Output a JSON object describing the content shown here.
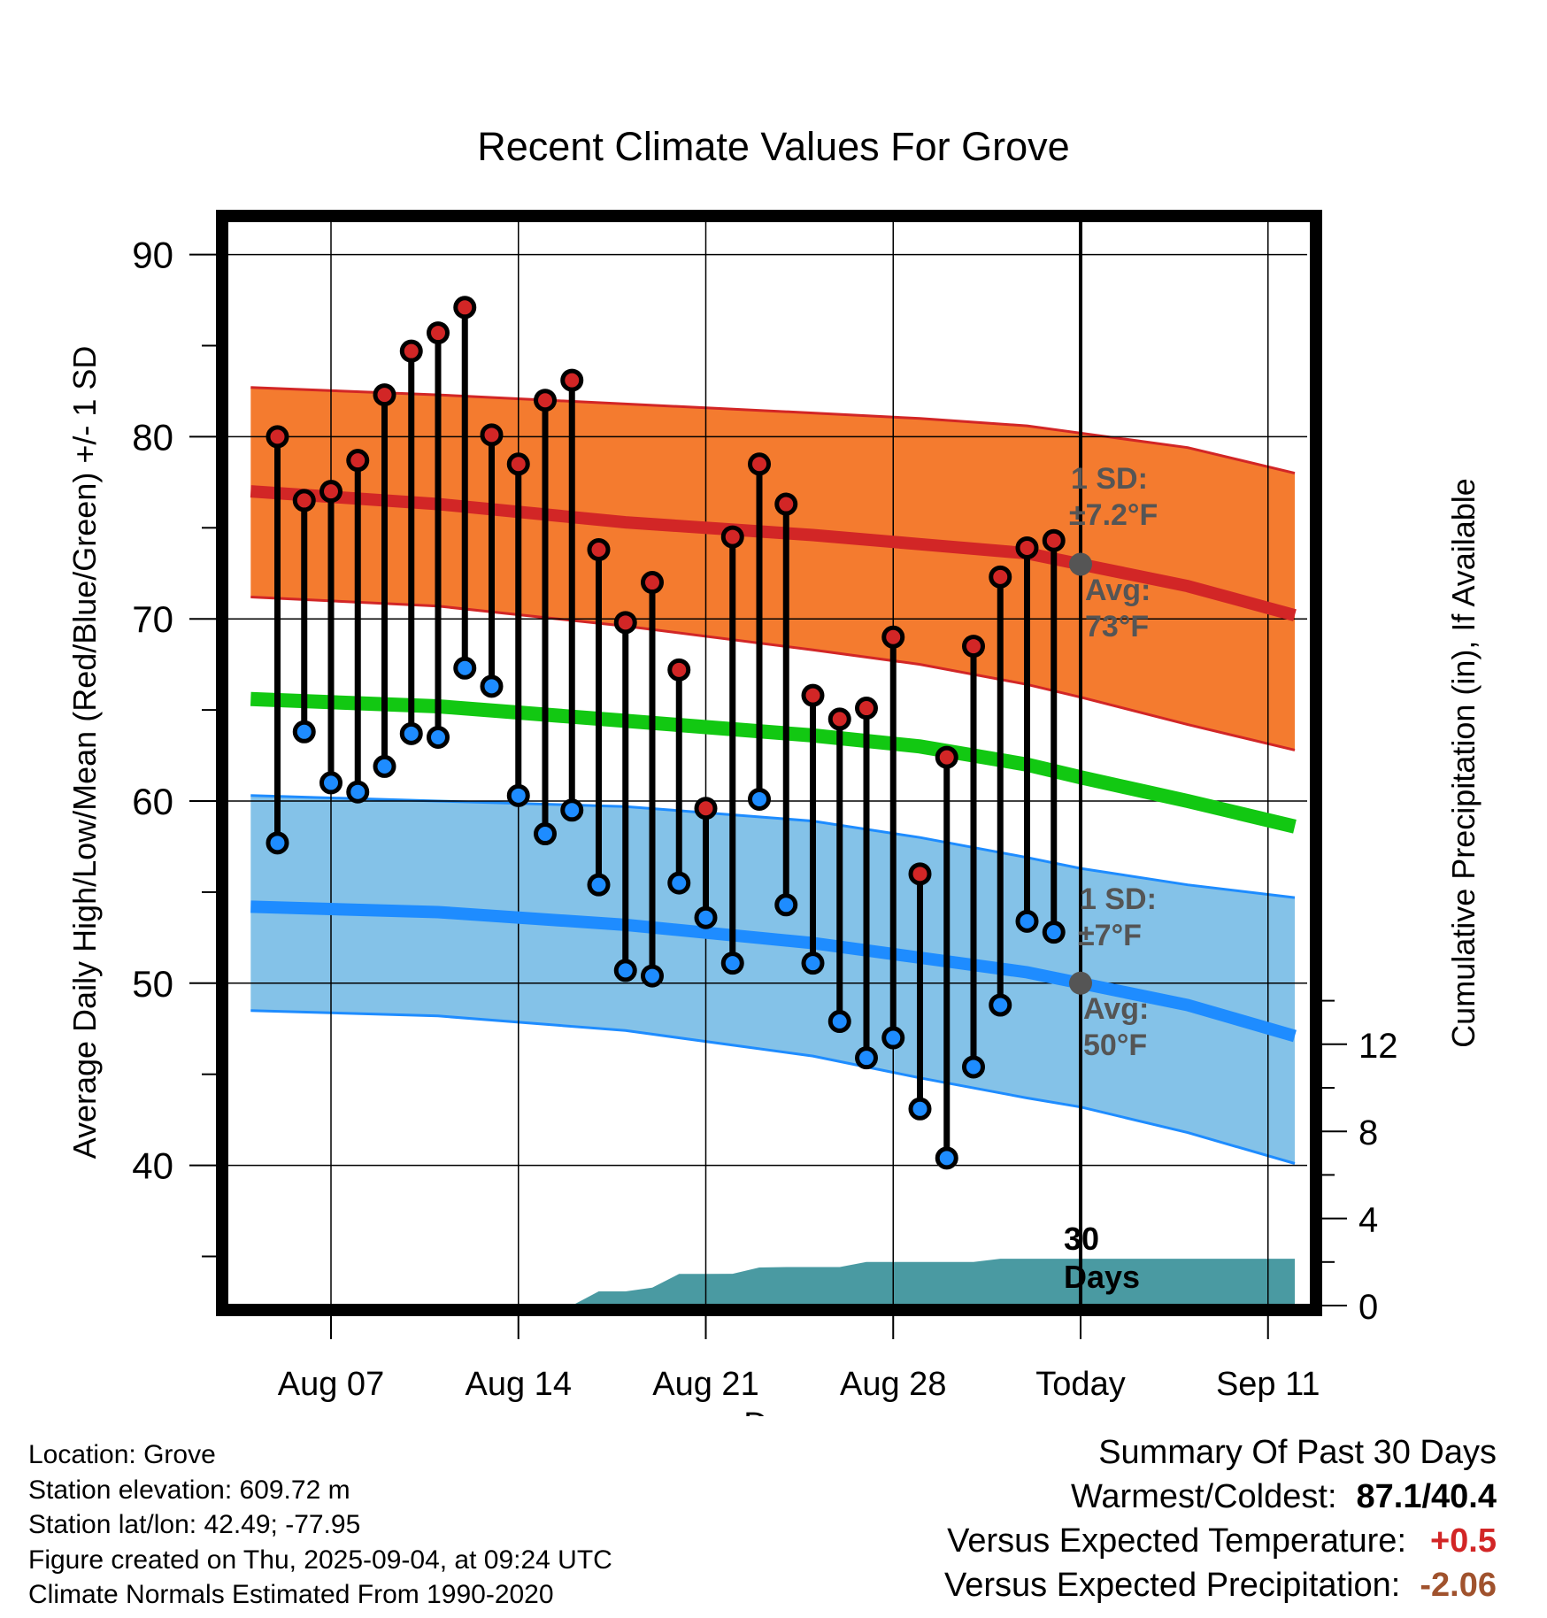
{
  "chart_data": {
    "type": "line",
    "title": "Recent Climate Values For Grove",
    "xlabel": "Day",
    "ylabel": "Average Daily High/Low/Mean (Red/Blue/Green) +/- 1 SD",
    "y2label": "Cumulative Precipitation (in), If Available",
    "ylim": [
      33,
      93
    ],
    "y2lim": [
      0,
      24
    ],
    "yticks": [
      40,
      50,
      60,
      70,
      80,
      90
    ],
    "y2ticks": [
      0,
      4,
      8,
      12
    ],
    "xlim": [
      -3.6,
      14.1
    ],
    "xticks": [
      {
        "day": -27,
        "label": "Aug 07"
      },
      {
        "day": -20,
        "label": "Aug 14"
      },
      {
        "day": -13,
        "label": "Aug 21"
      },
      {
        "day": -6,
        "label": "Aug 28"
      },
      {
        "day": 1,
        "label": "Today"
      },
      {
        "day": 8,
        "label": "Sep 11"
      }
    ],
    "grid": true,
    "observed": [
      {
        "day": -29,
        "high": 80.0,
        "low": 57.7
      },
      {
        "day": -28,
        "high": 76.5,
        "low": 63.8
      },
      {
        "day": -27,
        "high": 77.0,
        "low": 61.0
      },
      {
        "day": -26,
        "high": 78.7,
        "low": 60.5
      },
      {
        "day": -25,
        "high": 82.3,
        "low": 61.9
      },
      {
        "day": -24,
        "high": 84.7,
        "low": 63.7
      },
      {
        "day": -23,
        "high": 85.7,
        "low": 63.5
      },
      {
        "day": -22,
        "high": 87.1,
        "low": 67.3
      },
      {
        "day": -21,
        "high": 80.1,
        "low": 66.3
      },
      {
        "day": -20,
        "high": 78.5,
        "low": 60.3
      },
      {
        "day": -19,
        "high": 82.0,
        "low": 58.2
      },
      {
        "day": -18,
        "high": 83.1,
        "low": 59.5
      },
      {
        "day": -17,
        "high": 73.8,
        "low": 55.4
      },
      {
        "day": -16,
        "high": 69.8,
        "low": 50.7
      },
      {
        "day": -15,
        "high": 72.0,
        "low": 50.4
      },
      {
        "day": -14,
        "high": 67.2,
        "low": 55.5
      },
      {
        "day": -13,
        "high": 59.6,
        "low": 53.6
      },
      {
        "day": -12,
        "high": 74.5,
        "low": 51.1
      },
      {
        "day": -11,
        "high": 78.5,
        "low": 60.1
      },
      {
        "day": -10,
        "high": 76.3,
        "low": 54.3
      },
      {
        "day": -9,
        "high": 65.8,
        "low": 51.1
      },
      {
        "day": -8,
        "high": 64.5,
        "low": 47.9
      },
      {
        "day": -7,
        "high": 65.1,
        "low": 45.9
      },
      {
        "day": -6,
        "high": 69.0,
        "low": 47.0
      },
      {
        "day": -5,
        "high": 56.0,
        "low": 43.1
      },
      {
        "day": -4,
        "high": 62.4,
        "low": 40.4
      },
      {
        "day": -3,
        "high": 68.5,
        "low": 45.4
      },
      {
        "day": -2,
        "high": 72.3,
        "low": 48.8
      },
      {
        "day": -1,
        "high": 73.9,
        "low": 53.4
      },
      {
        "day": 0,
        "high": 74.3,
        "low": 52.8
      }
    ],
    "normals": {
      "high": [
        [
          -30.0,
          77.0
        ],
        [
          -23.0,
          76.3
        ],
        [
          -16.0,
          75.3
        ],
        [
          -9.0,
          74.6
        ],
        [
          -5.0,
          74.1
        ],
        [
          -1.0,
          73.6
        ],
        [
          1.0,
          73.0
        ],
        [
          5.0,
          71.8
        ],
        [
          9.0,
          70.2
        ]
      ],
      "high_sd_upper": [
        [
          -30.0,
          82.7
        ],
        [
          -23.0,
          82.3
        ],
        [
          -16.0,
          81.8
        ],
        [
          -9.0,
          81.3
        ],
        [
          -5.0,
          81.0
        ],
        [
          -1.0,
          80.6
        ],
        [
          1.0,
          80.2
        ],
        [
          5.0,
          79.4
        ],
        [
          9.0,
          78.0
        ]
      ],
      "high_sd_lower": [
        [
          -30.0,
          71.2
        ],
        [
          -23.0,
          70.7
        ],
        [
          -16.0,
          69.6
        ],
        [
          -9.0,
          68.3
        ],
        [
          -5.0,
          67.5
        ],
        [
          -1.0,
          66.4
        ],
        [
          1.0,
          65.7
        ],
        [
          5.0,
          64.2
        ],
        [
          9.0,
          62.8
        ]
      ],
      "mean": [
        [
          -30.0,
          65.6
        ],
        [
          -23.0,
          65.2
        ],
        [
          -16.0,
          64.4
        ],
        [
          -9.0,
          63.6
        ],
        [
          -5.0,
          63.0
        ],
        [
          -1.0,
          62.0
        ],
        [
          1.0,
          61.3
        ],
        [
          5.0,
          60.0
        ],
        [
          9.0,
          58.6
        ]
      ],
      "low": [
        [
          -30.0,
          54.2
        ],
        [
          -23.0,
          53.9
        ],
        [
          -16.0,
          53.2
        ],
        [
          -9.0,
          52.2
        ],
        [
          -5.0,
          51.4
        ],
        [
          -1.0,
          50.6
        ],
        [
          1.0,
          50.0
        ],
        [
          5.0,
          48.8
        ],
        [
          9.0,
          47.1
        ]
      ],
      "low_sd_upper": [
        [
          -30.0,
          60.3
        ],
        [
          -23.0,
          60.0
        ],
        [
          -16.0,
          59.7
        ],
        [
          -9.0,
          58.9
        ],
        [
          -5.0,
          58.0
        ],
        [
          -1.0,
          56.9
        ],
        [
          1.0,
          56.3
        ],
        [
          5.0,
          55.4
        ],
        [
          9.0,
          54.7
        ]
      ],
      "low_sd_lower": [
        [
          -30.0,
          48.5
        ],
        [
          -23.0,
          48.2
        ],
        [
          -16.0,
          47.4
        ],
        [
          -9.0,
          46.0
        ],
        [
          -5.0,
          44.8
        ],
        [
          -1.0,
          43.7
        ],
        [
          1.0,
          43.2
        ],
        [
          5.0,
          41.8
        ],
        [
          9.0,
          40.1
        ]
      ]
    },
    "precip_cumulative": [
      [
        -30.0,
        0.0
      ],
      [
        -18.0,
        0.0
      ],
      [
        -17.0,
        0.65
      ],
      [
        -16.0,
        0.65
      ],
      [
        -15.0,
        0.82
      ],
      [
        -14.0,
        1.45
      ],
      [
        -13.0,
        1.45
      ],
      [
        -12.0,
        1.46
      ],
      [
        -11.0,
        1.75
      ],
      [
        -10.0,
        1.77
      ],
      [
        -9.0,
        1.77
      ],
      [
        -8.0,
        1.77
      ],
      [
        -7.0,
        2.0
      ],
      [
        -6.0,
        2.0
      ],
      [
        -5.0,
        2.0
      ],
      [
        -4.0,
        2.0
      ],
      [
        -3.0,
        2.0
      ],
      [
        -2.0,
        2.15
      ],
      [
        -1.0,
        2.15
      ],
      [
        9.0,
        2.15
      ]
    ],
    "annotations": {
      "high_sd_label": "1 SD:",
      "high_sd_value": "±7.2°F",
      "high_avg_label": "Avg:",
      "high_avg_value": "73°F",
      "low_sd_label": "1 SD:",
      "low_sd_value": "±7°F",
      "low_avg_label": "Avg:",
      "low_avg_value": "50°F",
      "precip_period_line1": "30",
      "precip_period_line2": "Days"
    },
    "colors": {
      "high_band": "#f47b2f",
      "high_line": "#d22626",
      "mean_line": "#12c812",
      "low_band": "#84c2e8",
      "low_line": "#1e8cff",
      "precip": "#4a9aa2",
      "marker_high": "#d22626",
      "marker_low": "#1e8cff",
      "annotation": "#555555"
    }
  },
  "info": {
    "location": "Location: Grove",
    "elevation": "Station elevation: 609.72 m",
    "latlon": "Station lat/lon: 42.49; -77.95",
    "created": "Figure created on Thu, 2025-09-04, at 09:24 UTC",
    "normals": "Climate Normals Estimated From 1990-2020"
  },
  "summary": {
    "title": "Summary Of Past 30 Days",
    "warm_cold_label": "Warmest/Coldest:",
    "warm_cold_value": "87.1/40.4",
    "temp_label": "Versus Expected Temperature:",
    "temp_value": "+0.5",
    "temp_color": "#d22626",
    "precip_label": "Versus Expected Precipitation:",
    "precip_value": "-2.06",
    "precip_color": "#a0522d"
  }
}
